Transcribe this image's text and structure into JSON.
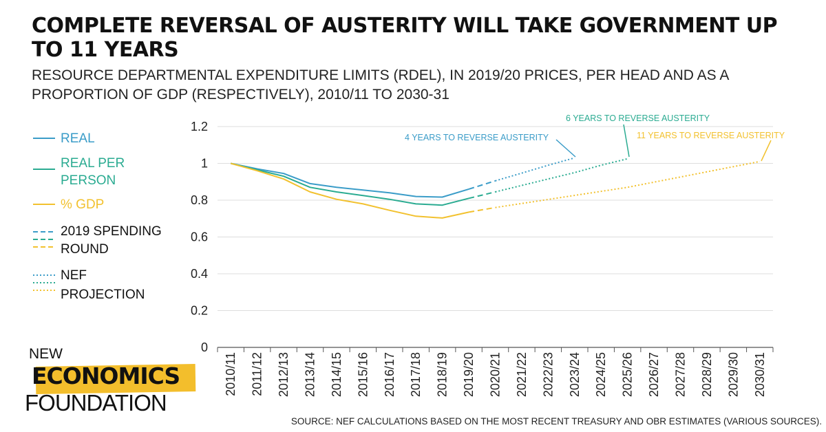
{
  "header": {
    "title": "COMPLETE REVERSAL OF AUSTERITY WILL TAKE GOVERNMENT UP TO 11 YEARS",
    "subtitle": "RESOURCE DEPARTMENTAL EXPENDITURE LIMITS (RDEL), IN 2019/20 PRICES, PER HEAD AND AS A PROPORTION OF GDP (RESPECTIVELY), 2010/11 TO 2030-31"
  },
  "legend": {
    "real": "REAL",
    "real_per_person_1": "REAL PER",
    "real_per_person_2": "PERSON",
    "gdp": "% GDP",
    "spending_round_1": "2019 SPENDING",
    "spending_round_2": "ROUND",
    "projection_1": "NEF",
    "projection_2": "PROJECTION"
  },
  "annotations": {
    "real": "4 YEARS TO REVERSE AUSTERITY",
    "real_per_person": "6 YEARS TO REVERSE AUSTERITY",
    "gdp": "11 YEARS TO REVERSE AUSTERITY"
  },
  "logo": {
    "line1": "NEW",
    "line2": "ECONOMICS",
    "line3": "FOUNDATION"
  },
  "source": "SOURCE: NEF CALCULATIONS BASED ON THE MOST RECENT TREASURY AND OBR ESTIMATES (VARIOUS SOURCES).",
  "colors": {
    "real": "#3a9cc8",
    "real_per_person": "#2aab91",
    "gdp": "#f2c12e",
    "axis": "#555555",
    "grid": "#dddddd",
    "logo_highlight": "#f3be2c"
  },
  "chart_data": {
    "type": "line",
    "title": "COMPLETE REVERSAL OF AUSTERITY WILL TAKE GOVERNMENT UP TO 11 YEARS",
    "categories": [
      "2010/11",
      "2011/12",
      "2012/13",
      "2013/14",
      "2014/15",
      "2015/16",
      "2016/17",
      "2017/18",
      "2018/19",
      "2019/20",
      "2020/21",
      "2021/22",
      "2022/23",
      "2023/24",
      "2024/25",
      "2025/26",
      "2026/27",
      "2027/28",
      "2028/29",
      "2029/30",
      "2030/31"
    ],
    "ylim": [
      0,
      1.2
    ],
    "yticks": [
      0,
      0.2,
      0.4,
      0.6,
      0.8,
      1,
      1.2
    ],
    "ytick_labels": [
      "0",
      "0.2",
      "0.4",
      "0.6",
      "0.8",
      "1",
      "1.2"
    ],
    "grid": true,
    "legend_position": "left",
    "series": [
      {
        "name": "REAL",
        "color": "#3a9cc8",
        "segments": [
          {
            "style": "solid",
            "points": [
              [
                "2010/11",
                1.0
              ],
              [
                "2011/12",
                0.97
              ],
              [
                "2012/13",
                0.945
              ],
              [
                "2013/14",
                0.89
              ],
              [
                "2014/15",
                0.87
              ],
              [
                "2015/16",
                0.855
              ],
              [
                "2016/17",
                0.84
              ],
              [
                "2017/18",
                0.82
              ],
              [
                "2018/19",
                0.817
              ],
              [
                "2019/20",
                0.86
              ]
            ]
          },
          {
            "style": "dashed",
            "points": [
              [
                "2019/20",
                0.86
              ],
              [
                "2020/21",
                0.905
              ]
            ]
          },
          {
            "style": "dotted",
            "points": [
              [
                "2020/21",
                0.905
              ],
              [
                "2021/22",
                0.947
              ],
              [
                "2022/23",
                0.99
              ],
              [
                "2023/24",
                1.03
              ]
            ]
          }
        ]
      },
      {
        "name": "REAL PER PERSON",
        "color": "#2aab91",
        "segments": [
          {
            "style": "solid",
            "points": [
              [
                "2010/11",
                1.0
              ],
              [
                "2011/12",
                0.965
              ],
              [
                "2012/13",
                0.93
              ],
              [
                "2013/14",
                0.87
              ],
              [
                "2014/15",
                0.845
              ],
              [
                "2015/16",
                0.825
              ],
              [
                "2016/17",
                0.805
              ],
              [
                "2017/18",
                0.78
              ],
              [
                "2018/19",
                0.773
              ],
              [
                "2019/20",
                0.81
              ]
            ]
          },
          {
            "style": "dashed",
            "points": [
              [
                "2019/20",
                0.81
              ],
              [
                "2020/21",
                0.845
              ]
            ]
          },
          {
            "style": "dotted",
            "points": [
              [
                "2020/21",
                0.845
              ],
              [
                "2021/22",
                0.88
              ],
              [
                "2022/23",
                0.915
              ],
              [
                "2023/24",
                0.95
              ],
              [
                "2024/25",
                0.99
              ],
              [
                "2025/26",
                1.025
              ]
            ]
          }
        ]
      },
      {
        "name": "% GDP",
        "color": "#f2c12e",
        "segments": [
          {
            "style": "solid",
            "points": [
              [
                "2010/11",
                1.0
              ],
              [
                "2011/12",
                0.96
              ],
              [
                "2012/13",
                0.915
              ],
              [
                "2013/14",
                0.845
              ],
              [
                "2014/15",
                0.805
              ],
              [
                "2015/16",
                0.78
              ],
              [
                "2016/17",
                0.745
              ],
              [
                "2017/18",
                0.713
              ],
              [
                "2018/19",
                0.703
              ],
              [
                "2019/20",
                0.735
              ]
            ]
          },
          {
            "style": "dashed",
            "points": [
              [
                "2019/20",
                0.735
              ],
              [
                "2020/21",
                0.76
              ]
            ]
          },
          {
            "style": "dotted",
            "points": [
              [
                "2020/21",
                0.76
              ],
              [
                "2025/26",
                0.87
              ],
              [
                "2030/31",
                1.01
              ]
            ]
          }
        ]
      }
    ]
  }
}
